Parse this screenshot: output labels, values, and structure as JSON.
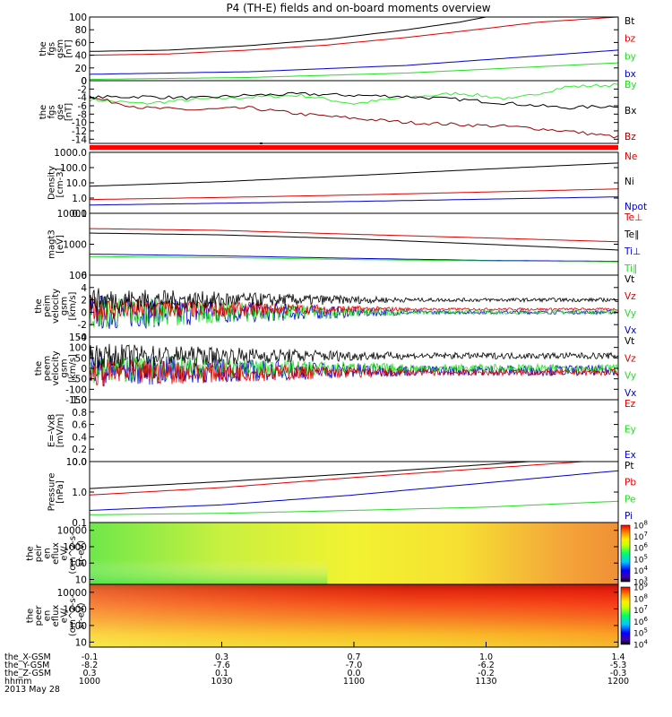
{
  "title": "P4 (TH-E) fields and on-board moments overview",
  "colors": {
    "black": "#000000",
    "red": "#dd0000",
    "green": "#22dd22",
    "blue": "#0000cc",
    "darkred": "#990000",
    "bright_green": "#33ee33"
  },
  "chart_data": [
    {
      "type": "line",
      "id": "fgs_mag",
      "ylabel": [
        "the",
        "fgs",
        "gsm",
        "[nT]"
      ],
      "ylim": [
        0,
        100
      ],
      "yticks": [
        "100",
        "80",
        "60",
        "40",
        "20",
        "0"
      ],
      "ytick_values": [
        100,
        80,
        60,
        40,
        20,
        0
      ],
      "legend": [
        {
          "label": "Bt",
          "color": "#000000"
        },
        {
          "label": "bz",
          "color": "#dd0000"
        },
        {
          "label": "by",
          "color": "#22dd22"
        },
        {
          "label": "bx",
          "color": "#0000cc"
        }
      ],
      "series": [
        {
          "color": "#000000",
          "x": [
            0,
            0.15,
            0.3,
            0.45,
            0.6,
            0.7,
            0.75,
            1.0
          ],
          "y": [
            46,
            48,
            55,
            65,
            80,
            92,
            100,
            100
          ]
        },
        {
          "color": "#dd0000",
          "x": [
            0,
            0.15,
            0.3,
            0.45,
            0.6,
            0.75,
            0.85,
            1.0
          ],
          "y": [
            40,
            42,
            48,
            56,
            68,
            82,
            92,
            100
          ]
        },
        {
          "color": "#0000cc",
          "x": [
            0,
            0.3,
            0.6,
            0.8,
            1.0
          ],
          "y": [
            10,
            14,
            24,
            36,
            48
          ]
        },
        {
          "color": "#22dd22",
          "x": [
            0,
            0.3,
            0.6,
            0.8,
            1.0
          ],
          "y": [
            2,
            5,
            12,
            20,
            28
          ]
        }
      ]
    },
    {
      "type": "line",
      "id": "fgs_gse",
      "ylabel": [
        "the",
        "fgs",
        "gse",
        "[nT]"
      ],
      "ylim": [
        -15,
        0
      ],
      "yticks": [
        "0",
        "-2",
        "-4",
        "-6",
        "-8",
        "-10",
        "-12",
        "-14"
      ],
      "ytick_values": [
        0,
        -2,
        -4,
        -6,
        -8,
        -10,
        -12,
        -14
      ],
      "legend": [
        {
          "label": "By",
          "color": "#22dd22"
        },
        {
          "label": "Bx",
          "color": "#000000"
        },
        {
          "label": "Bz",
          "color": "#990000"
        }
      ],
      "series": [
        {
          "color": "#33ee33",
          "x": [
            0,
            0.1,
            0.2,
            0.3,
            0.4,
            0.5,
            0.6,
            0.7,
            0.8,
            0.85,
            0.9,
            1.0
          ],
          "y": [
            -4.5,
            -5.5,
            -4.5,
            -4,
            -3.5,
            -5.5,
            -4,
            -3,
            -4.5,
            -3,
            -1.5,
            -1
          ]
        },
        {
          "color": "#000000",
          "x": [
            0,
            0.1,
            0.2,
            0.3,
            0.4,
            0.5,
            0.6,
            0.7,
            0.8,
            0.9,
            1.0
          ],
          "y": [
            -4,
            -3.8,
            -4.2,
            -3.5,
            -3.2,
            -3.5,
            -3.8,
            -4.5,
            -5.5,
            -6.5,
            -6
          ]
        },
        {
          "color": "#990000",
          "x": [
            0,
            0.1,
            0.2,
            0.3,
            0.4,
            0.5,
            0.6,
            0.7,
            0.8,
            0.9,
            1.0
          ],
          "y": [
            -4,
            -6.5,
            -7,
            -6.5,
            -8,
            -9,
            -10,
            -10.5,
            -11,
            -12,
            -13.5
          ]
        }
      ]
    },
    {
      "type": "line",
      "id": "density",
      "ylabel": [
        "Density",
        "[cm-3]"
      ],
      "ylim": [
        0.1,
        1000
      ],
      "log": true,
      "yticks": [
        "1000.0",
        "100.0",
        "10.0",
        "1.0",
        "0.1"
      ],
      "ytick_values": [
        1000,
        100,
        10,
        1,
        0.1
      ],
      "legend": [
        {
          "label": "Ne",
          "color": "#dd0000"
        },
        {
          "label": "Ni",
          "color": "#000000"
        },
        {
          "label": "Npot",
          "color": "#0000cc"
        }
      ],
      "series": [
        {
          "color": "#000000",
          "x": [
            0,
            0.25,
            0.5,
            0.75,
            1.0
          ],
          "y": [
            6,
            12,
            30,
            80,
            200
          ]
        },
        {
          "color": "#dd0000",
          "x": [
            0,
            0.25,
            0.5,
            0.75,
            1.0
          ],
          "y": [
            0.8,
            1.1,
            1.6,
            2.5,
            4
          ]
        },
        {
          "color": "#0000cc",
          "x": [
            0,
            0.5,
            1.0
          ],
          "y": [
            0.35,
            0.6,
            1.2
          ]
        }
      ]
    },
    {
      "type": "line",
      "id": "temperature",
      "ylabel": [
        "magt3",
        "[eV]"
      ],
      "ylim": [
        100,
        10000
      ],
      "log": true,
      "yticks": [
        "10000",
        "1000",
        "100"
      ],
      "ytick_values": [
        10000,
        1000,
        100
      ],
      "legend": [
        {
          "label": "Te⊥",
          "color": "#dd0000"
        },
        {
          "label": "Te∥",
          "color": "#000000"
        },
        {
          "label": "Ti⊥",
          "color": "#0000cc"
        },
        {
          "label": "Ti∥",
          "color": "#22dd22"
        }
      ],
      "series": [
        {
          "color": "#dd0000",
          "x": [
            0,
            0.25,
            0.5,
            0.75,
            1.0
          ],
          "y": [
            3200,
            2800,
            2100,
            1600,
            1200
          ]
        },
        {
          "color": "#000000",
          "x": [
            0,
            0.25,
            0.5,
            0.75,
            1.0
          ],
          "y": [
            2300,
            2000,
            1500,
            1000,
            650
          ]
        },
        {
          "color": "#0000cc",
          "x": [
            0,
            0.25,
            0.5,
            0.75,
            1.0
          ],
          "y": [
            480,
            420,
            350,
            300,
            280
          ]
        },
        {
          "color": "#22dd22",
          "x": [
            0,
            0.25,
            0.5,
            0.75,
            1.0
          ],
          "y": [
            400,
            370,
            320,
            290,
            270
          ]
        }
      ]
    },
    {
      "type": "line",
      "id": "velocity_km",
      "ylabel": [
        "the",
        "peim",
        "velocity",
        "gsm",
        "[km/s]"
      ],
      "ylim": [
        -4,
        6
      ],
      "yticks": [
        "6",
        "4",
        "2",
        "0",
        "-2",
        "-4"
      ],
      "ytick_values": [
        6,
        4,
        2,
        0,
        -2,
        -4
      ],
      "legend": [
        {
          "label": "Vt",
          "color": "#000000"
        },
        {
          "label": "Vz",
          "color": "#dd0000"
        },
        {
          "label": "Vy",
          "color": "#22dd22"
        },
        {
          "label": "Vx",
          "color": "#0000cc"
        }
      ],
      "noise": [
        {
          "color": "#0000cc",
          "base": 0,
          "amp0": 3.0,
          "amp1": 0.3
        },
        {
          "color": "#22dd22",
          "base": 0,
          "amp0": 2.8,
          "amp1": 0.3
        },
        {
          "color": "#dd0000",
          "base": 0.5,
          "amp0": 2.0,
          "amp1": 0.2
        },
        {
          "color": "#000000",
          "base": 2.0,
          "amp0": 2.0,
          "amp1": 0.3
        }
      ]
    },
    {
      "type": "line",
      "id": "velocity_eer",
      "ylabel": [
        "the",
        "peem",
        "velocity",
        "gsm",
        "[km/s]"
      ],
      "ylim": [
        -150,
        150
      ],
      "yticks": [
        "150",
        "100",
        "50",
        "0",
        "-50",
        "-100",
        "-150"
      ],
      "ytick_values": [
        150,
        100,
        50,
        0,
        -50,
        -100,
        -150
      ],
      "legend": [
        {
          "label": "Vt",
          "color": "#000000"
        },
        {
          "label": "Vz",
          "color": "#dd0000"
        },
        {
          "label": "Vy",
          "color": "#22dd22"
        },
        {
          "label": "Vx",
          "color": "#0000cc"
        }
      ],
      "noise": [
        {
          "color": "#0000cc",
          "base": -10,
          "amp0": 80,
          "amp1": 25
        },
        {
          "color": "#22dd22",
          "base": 0,
          "amp0": 70,
          "amp1": 20
        },
        {
          "color": "#dd0000",
          "base": -20,
          "amp0": 70,
          "amp1": 15
        },
        {
          "color": "#000000",
          "base": 60,
          "amp0": 60,
          "amp1": 15
        }
      ]
    },
    {
      "type": "line",
      "id": "efield",
      "ylabel": [
        "E=-VxB",
        "[mV/m]"
      ],
      "ylim": [
        0,
        1
      ],
      "yticks": [
        "1.0",
        "0.8",
        "0.6",
        "0.4",
        "0.2",
        "0.0"
      ],
      "ytick_values": [
        1,
        0.8,
        0.6,
        0.4,
        0.2,
        0
      ],
      "legend": [
        {
          "label": "Ez",
          "color": "#dd0000"
        },
        {
          "label": "Ey",
          "color": "#22dd22"
        },
        {
          "label": "Ex",
          "color": "#0000cc"
        }
      ],
      "series": []
    },
    {
      "type": "line",
      "id": "pressure",
      "ylabel": [
        "Pressure",
        "[nPa]"
      ],
      "ylim": [
        0.1,
        10
      ],
      "log": true,
      "yticks": [
        "10.0",
        "1.0",
        "0.1"
      ],
      "ytick_values": [
        10,
        1,
        0.1
      ],
      "legend": [
        {
          "label": "Pt",
          "color": "#000000"
        },
        {
          "label": "Pb",
          "color": "#dd0000"
        },
        {
          "label": "Pe",
          "color": "#22dd22"
        },
        {
          "label": "Pi",
          "color": "#0000cc"
        }
      ],
      "series": [
        {
          "color": "#000000",
          "x": [
            0,
            0.25,
            0.5,
            0.75,
            1.0
          ],
          "y": [
            1.3,
            2.2,
            4,
            8,
            16
          ]
        },
        {
          "color": "#dd0000",
          "x": [
            0,
            0.25,
            0.5,
            0.75,
            1.0
          ],
          "y": [
            0.8,
            1.4,
            3,
            6,
            12
          ]
        },
        {
          "color": "#0000cc",
          "x": [
            0,
            0.25,
            0.5,
            0.75,
            1.0
          ],
          "y": [
            0.25,
            0.38,
            0.8,
            2,
            5
          ]
        },
        {
          "color": "#22dd22",
          "x": [
            0,
            0.25,
            0.5,
            0.75,
            1.0
          ],
          "y": [
            0.18,
            0.2,
            0.25,
            0.32,
            0.5
          ]
        }
      ]
    },
    {
      "type": "heatmap",
      "id": "ion_spec",
      "ylabel": [
        "the",
        "peir",
        "en",
        "eflux",
        "eV/",
        "(cm^2-s-",
        "sr-eV)"
      ],
      "ylim": [
        5,
        30000
      ],
      "log": true,
      "yticks": [
        "10000",
        "1000",
        "100",
        "10"
      ],
      "ytick_values": [
        10000,
        1000,
        100,
        10
      ],
      "colorbar_ticks": [
        "10^8",
        "10^7",
        "10^6",
        "10^5",
        "10^4",
        "10^3"
      ],
      "colorbar_values": [
        100000000,
        10000000,
        1000000,
        100000,
        10000,
        1000
      ]
    },
    {
      "type": "heatmap",
      "id": "elec_spec",
      "ylabel": [
        "the",
        "peer",
        "en",
        "eflux",
        "eV/",
        "(cm^2-s-",
        "sr-eV)"
      ],
      "ylim": [
        5,
        30000
      ],
      "log": true,
      "yticks": [
        "10000",
        "1000",
        "100",
        "10"
      ],
      "ytick_values": [
        10000,
        1000,
        100,
        10
      ],
      "colorbar_ticks": [
        "10^9",
        "10^8",
        "10^7",
        "10^6",
        "10^5",
        "10^4"
      ],
      "colorbar_values": [
        1000000000,
        100000000,
        10000000,
        1000000,
        100000,
        10000
      ]
    }
  ],
  "xaxis": {
    "rows": [
      {
        "label": "the_X-GSM",
        "values": [
          "-0.1",
          "0.3",
          "0.7",
          "1.0",
          "1.4"
        ]
      },
      {
        "label": "the_Y-GSM",
        "values": [
          "-8.2",
          "-7.6",
          "-7.0",
          "-6.2",
          "-5.3"
        ]
      },
      {
        "label": "the_Z-GSM",
        "values": [
          "0.3",
          "0.1",
          "0.0",
          "-0.2",
          "-0.3"
        ]
      },
      {
        "label": "hhmm",
        "values": [
          "1000",
          "1030",
          "1100",
          "1130",
          "1200"
        ]
      }
    ],
    "date": "2013 May 28"
  }
}
